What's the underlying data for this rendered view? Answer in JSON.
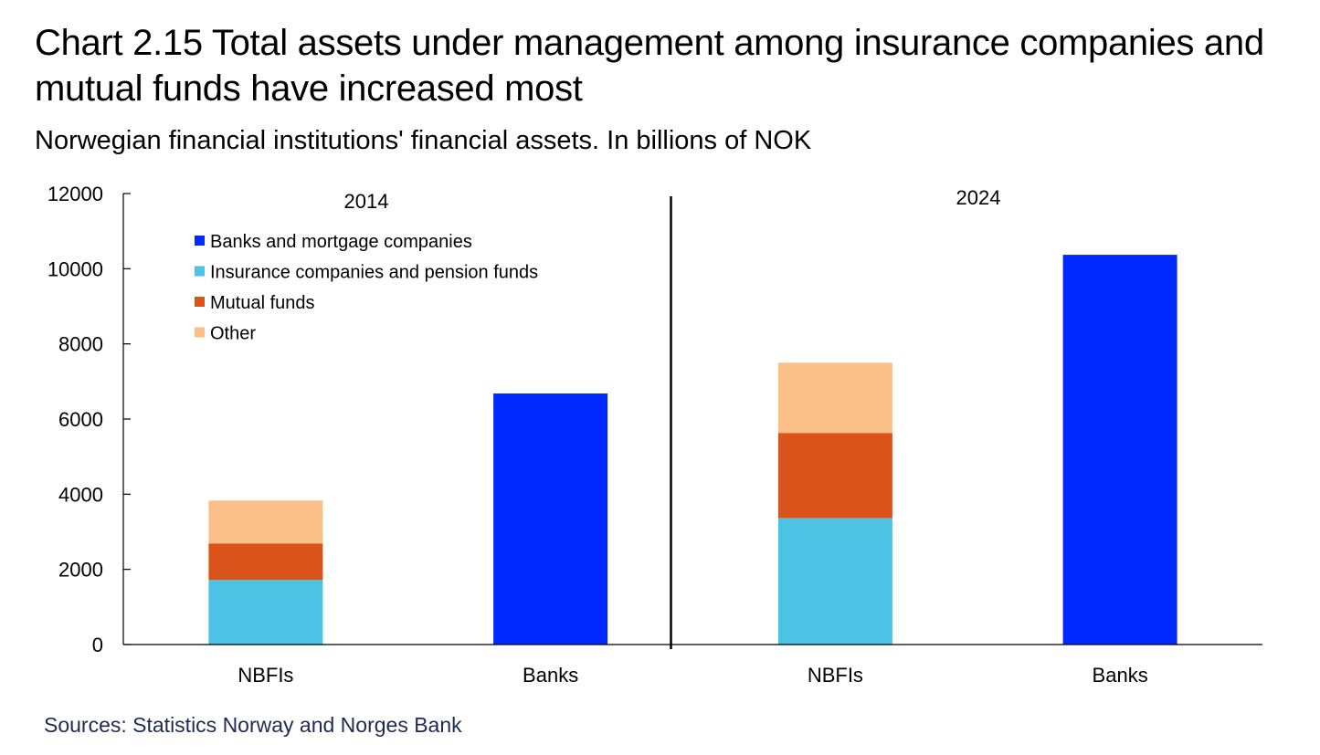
{
  "title": "Chart 2.15 Total assets under management among insurance companies and mutual funds have increased most",
  "subtitle": "Norwegian financial institutions' financial assets. In billions of NOK",
  "source": "Sources: Statistics Norway and Norges Bank",
  "chart_data": {
    "type": "bar",
    "stacked": true,
    "ylim": [
      0,
      12000
    ],
    "yticks": [
      0,
      2000,
      4000,
      6000,
      8000,
      10000,
      12000
    ],
    "groups": [
      {
        "label": "2014",
        "categories": [
          "NBFIs",
          "Banks"
        ]
      },
      {
        "label": "2024",
        "categories": [
          "NBFIs",
          "Banks"
        ]
      }
    ],
    "categories": [
      "NBFIs",
      "Banks",
      "NBFIs",
      "Banks"
    ],
    "series": [
      {
        "name": "Banks and mortgage companies",
        "color": "#0029ff",
        "values": [
          0,
          6680,
          0,
          10370
        ]
      },
      {
        "name": "Insurance companies and pension funds",
        "color": "#4cc2e4",
        "values": [
          1720,
          0,
          3360,
          0
        ]
      },
      {
        "name": "Mutual funds",
        "color": "#d9531b",
        "values": [
          970,
          0,
          2270,
          0
        ]
      },
      {
        "name": "Other",
        "color": "#fbc087",
        "values": [
          1140,
          0,
          1870,
          0
        ]
      }
    ],
    "grid": false,
    "legend": "top-left"
  }
}
